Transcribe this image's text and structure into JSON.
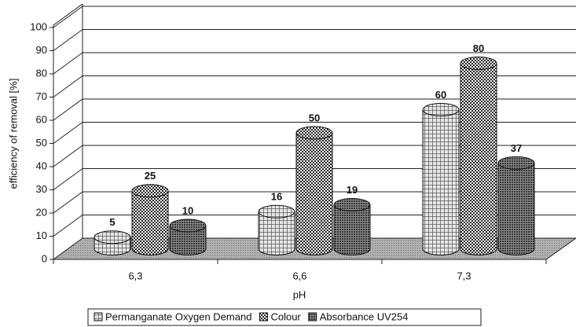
{
  "chart_data": {
    "type": "bar3d",
    "categories": [
      "6,3",
      "6,6",
      "7,3"
    ],
    "series": [
      {
        "name": "Permanganate Oxygen Demand",
        "color": "#e4e4e4",
        "values": [
          5,
          16,
          60
        ]
      },
      {
        "name": "Colour",
        "color": "#ffffff",
        "values": [
          25,
          50,
          80
        ]
      },
      {
        "name": "Absorbance UV254",
        "color": "#8a8a8a",
        "values": [
          10,
          19,
          37
        ]
      }
    ],
    "ylim": [
      0,
      100
    ],
    "yticks": [
      0,
      10,
      20,
      30,
      40,
      50,
      60,
      70,
      80,
      90,
      100
    ],
    "ylabel": "efficiency of removal [%]",
    "xlabel": "pH",
    "grid": true,
    "legend": "bottom"
  }
}
